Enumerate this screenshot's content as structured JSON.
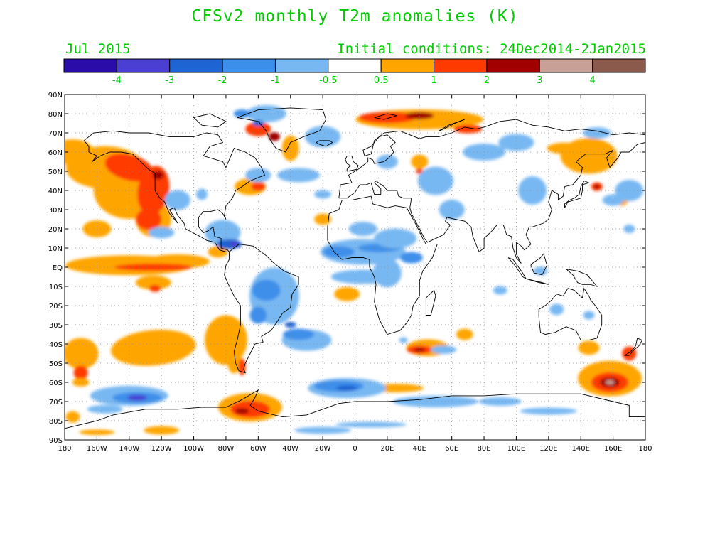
{
  "title": "CFSv2 monthly T2m anomalies (K)",
  "subtitle_left": "Jul 2015",
  "subtitle_right": "Initial conditions: 24Dec2014-2Jan2015",
  "colorbar": {
    "colors": [
      "#2a0ca8",
      "#4a3fd2",
      "#1e64d2",
      "#3c8fea",
      "#78b8f2",
      "#ffffff",
      "#ffa500",
      "#ff3a00",
      "#a00000",
      "#c8a096",
      "#8c5a4c"
    ],
    "labels": [
      "-4",
      "-3",
      "-2",
      "-1",
      "-0.5",
      "0.5",
      "1",
      "2",
      "3",
      "4"
    ]
  },
  "map": {
    "lat_labels": [
      "90N",
      "80N",
      "70N",
      "60N",
      "50N",
      "40N",
      "30N",
      "20N",
      "10N",
      "EQ",
      "10S",
      "20S",
      "30S",
      "40S",
      "50S",
      "60S",
      "70S",
      "80S",
      "90S"
    ],
    "lon_labels": [
      "180",
      "160W",
      "140W",
      "120W",
      "100W",
      "80W",
      "60W",
      "40W",
      "20W",
      "0",
      "20E",
      "40E",
      "60E",
      "80E",
      "100E",
      "120E",
      "140E",
      "160E",
      "180"
    ],
    "anomaly_regions": [
      {
        "label": "NE Pacific warm",
        "lon": -150,
        "lat": 42,
        "value": 1.5
      },
      {
        "label": "NE Pacific core",
        "lon": -128,
        "lat": 48,
        "value": 2.2
      },
      {
        "label": "Eq. Pacific warm",
        "lon": -130,
        "lat": 1,
        "value": 1.5
      },
      {
        "label": "Eq. Pacific core",
        "lon": -115,
        "lat": 0,
        "value": 2.2
      },
      {
        "label": "Caribbean cold",
        "lon": -75,
        "lat": 12,
        "value": -3.5
      },
      {
        "label": "South Pacific cold",
        "lon": -135,
        "lat": -67,
        "value": -3.5
      },
      {
        "label": "S. Atlantic cold",
        "lon": -5,
        "lat": -62,
        "value": -3.0
      },
      {
        "label": "S. Indian warm",
        "lon": 40,
        "lat": -42,
        "value": 2.5
      },
      {
        "label": "Tasman/S. Pacific warm",
        "lon": 158,
        "lat": -60,
        "value": 3.5
      },
      {
        "label": "Arctic Siberia warm",
        "lon": 40,
        "lat": 78,
        "value": 2.0
      },
      {
        "label": "Japan warm",
        "lon": 150,
        "lat": 42,
        "value": 2.0
      },
      {
        "label": "Tropical Atlantic cold",
        "lon": 0,
        "lat": 8,
        "value": -1.0
      },
      {
        "label": "Africa cold",
        "lon": 20,
        "lat": 5,
        "value": -1.5
      },
      {
        "label": "South America cold",
        "lon": -50,
        "lat": -20,
        "value": -1.5
      },
      {
        "label": "S. Atlantic midlat cold",
        "lon": -30,
        "lat": -35,
        "value": -2.0
      },
      {
        "label": "Antarctic Peninsula warm",
        "lon": -65,
        "lat": -75,
        "value": 2.0
      }
    ]
  }
}
